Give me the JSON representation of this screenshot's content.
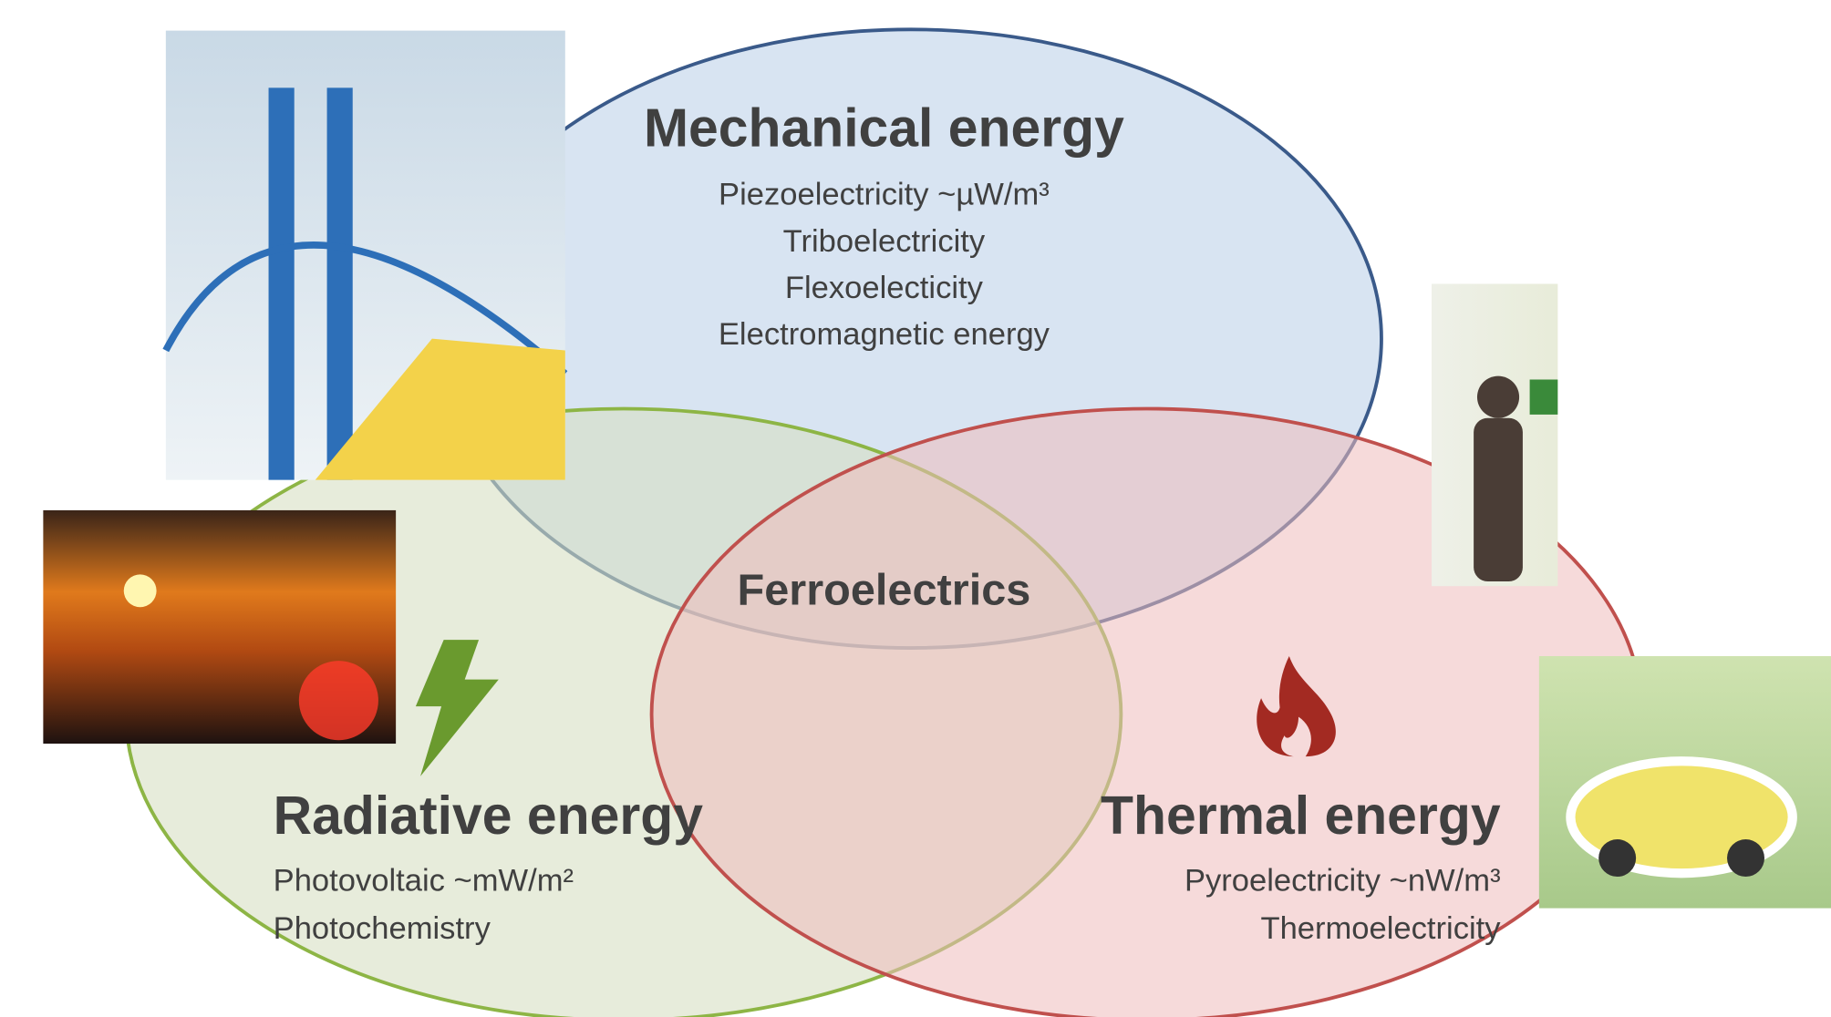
{
  "mechanical": {
    "title": "Mechanical energy",
    "items": [
      "Piezoelectricity ~µW/m³",
      "Triboelectricity",
      "Flexoelecticity",
      "Electromagnetic energy"
    ]
  },
  "radiative": {
    "title": "Radiative energy",
    "items": [
      "Photovoltaic ~mW/m²",
      "Photochemistry"
    ]
  },
  "thermal": {
    "title": "Thermal energy",
    "items": [
      "Pyroelectricity ~nW/m³",
      "Thermoelectricity"
    ]
  },
  "center": {
    "label": "Ferroelectrics"
  }
}
